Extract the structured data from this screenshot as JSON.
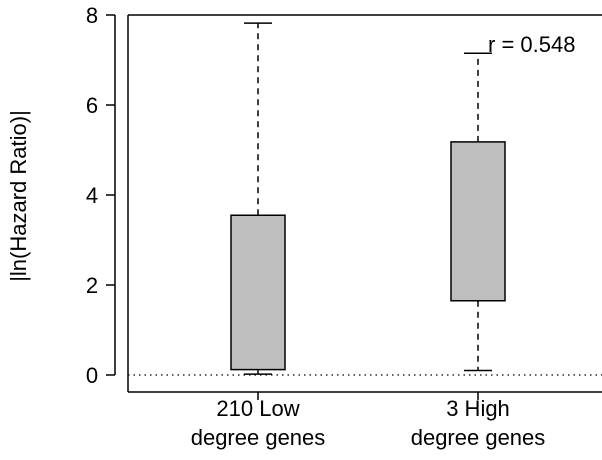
{
  "chart_data": {
    "type": "boxplot",
    "ylabel": "|ln(Hazard Ratio)|",
    "ylim": [
      0,
      8
    ],
    "yticks": [
      0,
      2,
      4,
      6,
      8
    ],
    "reference_line": {
      "y": 0,
      "style": "dotted"
    },
    "annotation": "r = 0.548",
    "groups": [
      {
        "label_line1": "210 Low",
        "label_line2": "degree genes",
        "min": 0.02,
        "q1": 0.12,
        "q3": 3.55,
        "max": 7.82
      },
      {
        "label_line1": "3 High",
        "label_line2": "degree genes",
        "min": 0.1,
        "q1": 1.65,
        "q3": 5.18,
        "max": 7.15
      }
    ],
    "box_fill": "#bebebe",
    "grid": false
  }
}
